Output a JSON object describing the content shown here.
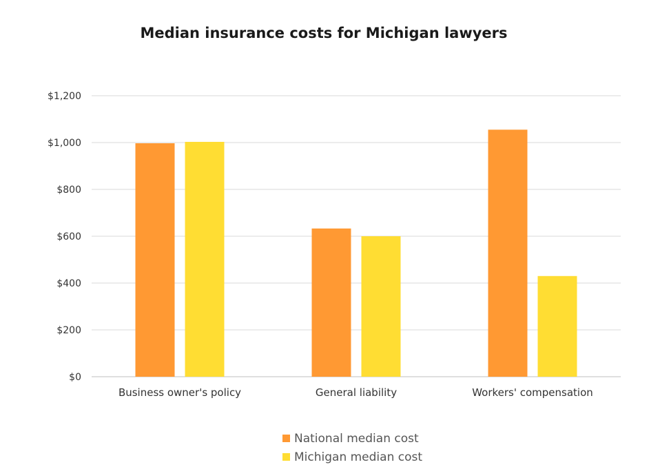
{
  "chart_data": {
    "type": "bar",
    "title": "Median insurance costs for Michigan lawyers",
    "categories": [
      "Business owner's policy",
      "General liability",
      "Workers' compensation"
    ],
    "series": [
      {
        "name": "National median cost",
        "color": "#FF9933",
        "values": [
          997,
          633,
          1055
        ]
      },
      {
        "name": "Michigan median cost",
        "color": "#FFDD33",
        "values": [
          1003,
          600,
          430
        ]
      }
    ],
    "ylim": [
      0,
      1200
    ],
    "yticks": [
      0,
      200,
      400,
      600,
      800,
      1000,
      1200
    ],
    "ytick_labels": [
      "$0",
      "$200",
      "$400",
      "$600",
      "$800",
      "$1,000",
      "$1,200"
    ],
    "grid": true,
    "legend_position": "bottom"
  }
}
